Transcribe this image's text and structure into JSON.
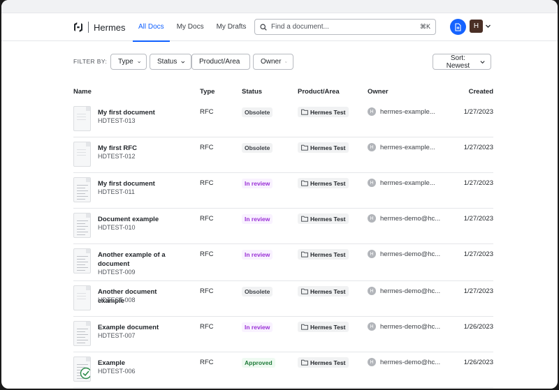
{
  "app": {
    "name": "Hermes"
  },
  "nav": {
    "tabs": [
      "All Docs",
      "My Docs",
      "My Drafts"
    ],
    "active": 0
  },
  "search": {
    "placeholder": "Find a document...",
    "shortcut": "⌘K"
  },
  "user": {
    "initial": "H"
  },
  "filters": {
    "label": "FILTER BY:",
    "buttons": [
      "Type",
      "Status",
      "Product/Area",
      "Owner"
    ],
    "sort": "Sort: Newest"
  },
  "table": {
    "headers": {
      "name": "Name",
      "type": "Type",
      "status": "Status",
      "product": "Product/Area",
      "owner": "Owner",
      "created": "Created"
    },
    "rows": [
      {
        "title": "My first document",
        "id": "HDTEST-013",
        "type": "RFC",
        "status": "Obsolete",
        "status_kind": "obsolete",
        "product": "Hermes Test",
        "owner_initial": "H",
        "owner": "hermes-example...",
        "created": "1/27/2023",
        "thumb": "faded"
      },
      {
        "title": "My first RFC",
        "id": "HDTEST-012",
        "type": "RFC",
        "status": "Obsolete",
        "status_kind": "obsolete",
        "product": "Hermes Test",
        "owner_initial": "H",
        "owner": "hermes-example...",
        "created": "1/27/2023",
        "thumb": "faded"
      },
      {
        "title": "My first document",
        "id": "HDTEST-011",
        "type": "RFC",
        "status": "In review",
        "status_kind": "review",
        "product": "Hermes Test",
        "owner_initial": "H",
        "owner": "hermes-example...",
        "created": "1/27/2023",
        "thumb": "lines"
      },
      {
        "title": "Document example",
        "id": "HDTEST-010",
        "type": "RFC",
        "status": "In review",
        "status_kind": "review",
        "product": "Hermes Test",
        "owner_initial": "H",
        "owner": "hermes-demo@hc...",
        "created": "1/27/2023",
        "thumb": "lines"
      },
      {
        "title": "Another example of a document",
        "id": "HDTEST-009",
        "type": "RFC",
        "status": "In review",
        "status_kind": "review",
        "product": "Hermes Test",
        "owner_initial": "H",
        "owner": "hermes-demo@hc...",
        "created": "1/27/2023",
        "thumb": "lines"
      },
      {
        "title": "Another document example",
        "id": "HDTEST-008",
        "type": "RFC",
        "status": "Obsolete",
        "status_kind": "obsolete",
        "product": "Hermes Test",
        "owner_initial": "H",
        "owner": "hermes-demo@hc...",
        "created": "1/27/2023",
        "thumb": "faded"
      },
      {
        "title": "Example document",
        "id": "HDTEST-007",
        "type": "RFC",
        "status": "In review",
        "status_kind": "review",
        "product": "Hermes Test",
        "owner_initial": "H",
        "owner": "hermes-demo@hc...",
        "created": "1/26/2023",
        "thumb": "lines"
      },
      {
        "title": "Example",
        "id": "HDTEST-006",
        "type": "RFC",
        "status": "Approved",
        "status_kind": "approved",
        "product": "Hermes Test",
        "owner_initial": "H",
        "owner": "hermes-demo@hc...",
        "created": "1/26/2023",
        "thumb": "check"
      }
    ]
  },
  "colors": {
    "accent": "#1060ff",
    "review": "#9a2fd6",
    "approved": "#1e7a38",
    "avatar": "#4a2f25"
  }
}
